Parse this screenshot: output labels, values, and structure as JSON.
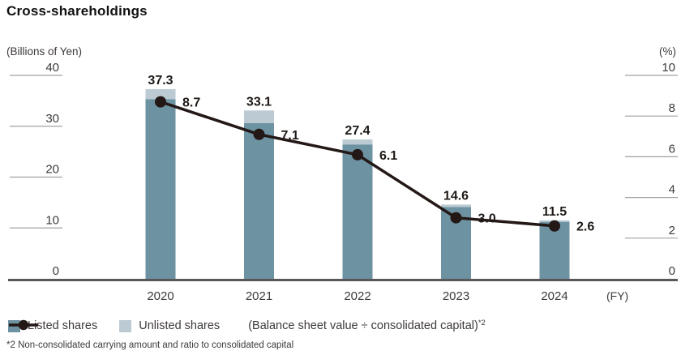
{
  "page": {
    "title": "Cross-shareholdings"
  },
  "colors": {
    "listed_bar": "#6d92a2",
    "unlisted_bar": "#bccbd3",
    "line": "#231815",
    "axis_line": "#595757",
    "tick_line": "#9fa0a0",
    "text": "#3e3a39",
    "value_text": "#1f1a17"
  },
  "chart_data": {
    "type": "bar",
    "subtype": "stacked-bar-with-line-on-secondary-axis",
    "title": "Cross-shareholdings",
    "categories": [
      "2020",
      "2021",
      "2022",
      "2023",
      "2024"
    ],
    "series": [
      {
        "name": "Listed shares",
        "type": "bar",
        "axis": "left",
        "values": [
          35.3,
          30.6,
          26.4,
          14.1,
          11.2
        ]
      },
      {
        "name": "Unlisted shares",
        "type": "bar",
        "axis": "left",
        "values": [
          2.0,
          2.5,
          1.0,
          0.5,
          0.3
        ]
      },
      {
        "name": "(Balance sheet value ÷ consolidated capital)*2",
        "type": "line",
        "axis": "right",
        "values": [
          8.7,
          7.1,
          6.1,
          3.0,
          2.6
        ]
      }
    ],
    "bar_totals": [
      37.3,
      33.1,
      27.4,
      14.6,
      11.5
    ],
    "bar_total_labels": [
      "37.3",
      "33.1",
      "27.4",
      "14.6",
      "11.5"
    ],
    "line_labels": [
      "8.7",
      "7.1",
      "6.1",
      "3.0",
      "2.6"
    ],
    "left_axis": {
      "label": "(Billions of Yen)",
      "ticks": [
        "40",
        "30",
        "20",
        "10",
        "0"
      ],
      "range": [
        0,
        40
      ]
    },
    "right_axis": {
      "label": "(%)",
      "ticks": [
        "10",
        "8",
        "6",
        "4",
        "2",
        "0"
      ],
      "range": [
        0,
        10
      ]
    },
    "x_suffix": "(FY)",
    "legend_position": "bottom",
    "grid": "tick-dashes-only"
  },
  "legend": {
    "listed": "Listed shares",
    "unlisted": "Unlisted shares",
    "line_label": "(Balance sheet value ÷ consolidated capital)",
    "line_sup": "*2"
  },
  "footnote": "*2 Non-consolidated carrying amount and ratio to consolidated capital"
}
